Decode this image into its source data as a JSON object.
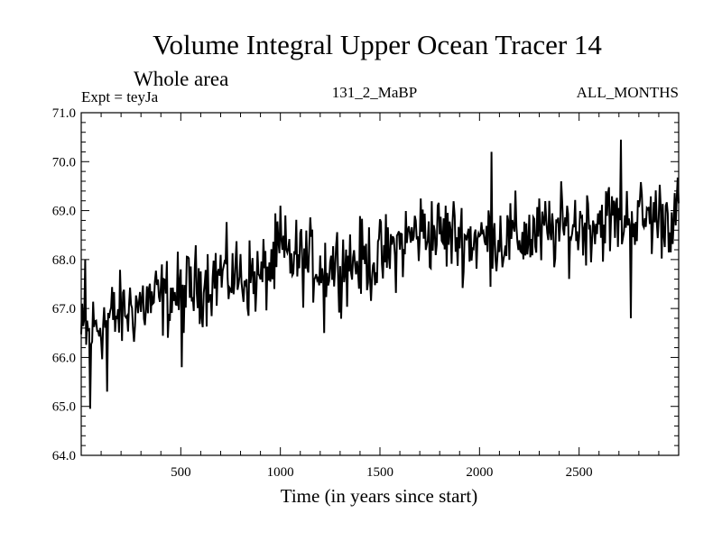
{
  "chart_data": {
    "type": "line",
    "title": "Volume Integral Upper Ocean Tracer 14",
    "subtitle": "Whole area",
    "experiment_label": "Expt = teyJa",
    "run_label": "131_2_MaBP",
    "season_label": "ALL_MONTHS",
    "xlabel": "Time (in years since start)",
    "ylabel": "",
    "xlim": [
      0,
      3000
    ],
    "ylim": [
      64.0,
      71.0
    ],
    "x_ticks": [
      500,
      1000,
      1500,
      2000,
      2500
    ],
    "x_tick_labels": [
      "500",
      "1000",
      "1500",
      "2000",
      "2500"
    ],
    "y_ticks": [
      64.0,
      65.0,
      66.0,
      67.0,
      68.0,
      69.0,
      70.0,
      71.0
    ],
    "y_tick_labels": [
      "64.0",
      "65.0",
      "66.0",
      "67.0",
      "68.0",
      "69.0",
      "70.0",
      "71.0"
    ],
    "grid": false,
    "series": [
      {
        "name": "Volume Integral Upper Ocean Tracer 14",
        "trend": {
          "x": [
            0,
            100,
            300,
            500,
            700,
            900,
            1000,
            1200,
            1500,
            1700,
            2000,
            2300,
            2600,
            3000
          ],
          "y": [
            66.4,
            66.7,
            67.1,
            67.3,
            67.7,
            67.6,
            68.1,
            67.9,
            68.0,
            68.6,
            68.4,
            68.5,
            68.8,
            68.9
          ]
        },
        "fluctuation_amplitude": 0.7,
        "sample_step_years": 5,
        "extremes": [
          {
            "x": 20,
            "y": 68.0
          },
          {
            "x": 45,
            "y": 64.95
          },
          {
            "x": 130,
            "y": 65.3
          },
          {
            "x": 505,
            "y": 65.8
          },
          {
            "x": 1000,
            "y": 69.1
          },
          {
            "x": 1220,
            "y": 66.5
          },
          {
            "x": 2060,
            "y": 70.2
          },
          {
            "x": 2710,
            "y": 70.45
          },
          {
            "x": 2760,
            "y": 66.8
          }
        ]
      }
    ]
  }
}
